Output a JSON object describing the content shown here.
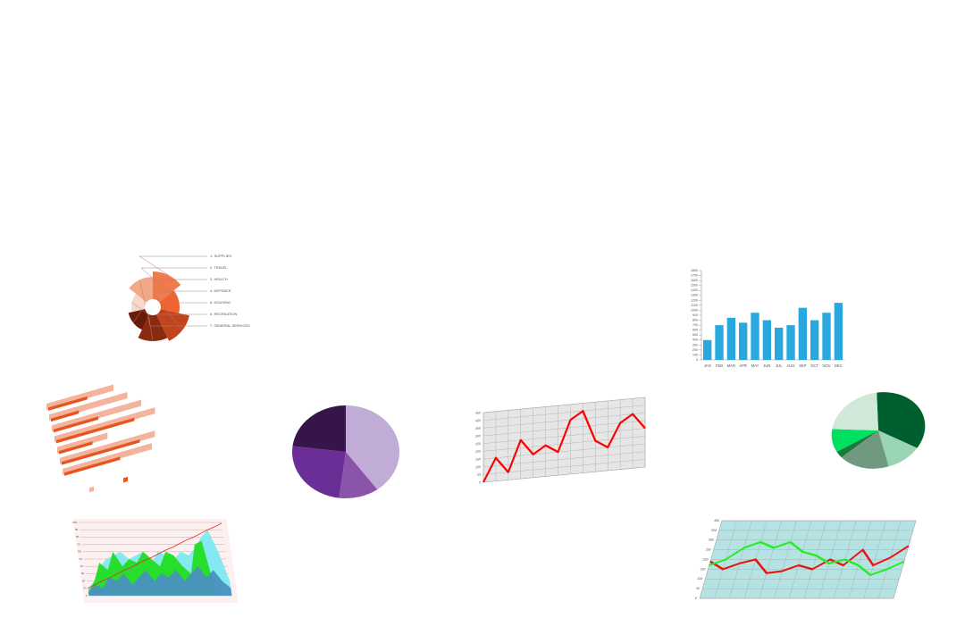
{
  "chart_data": [
    {
      "type": "bar",
      "categories": [
        "JAN",
        "FEB",
        "MAR",
        "APR",
        "MAY",
        "JUN",
        "JUL",
        "AUG",
        "SEP",
        "OCT",
        "NOV",
        "DEC"
      ],
      "values": [
        400,
        700,
        850,
        750,
        950,
        800,
        650,
        700,
        1050,
        800,
        950,
        1150
      ],
      "color": "#29a8e0",
      "ylim": [
        0,
        1800
      ],
      "yticks": [
        0,
        100,
        200,
        300,
        400,
        500,
        600,
        700,
        800,
        900,
        1000,
        1100,
        1200,
        1300,
        1400,
        1500,
        1600,
        1700,
        1800
      ]
    },
    {
      "type": "pie",
      "values": [
        40,
        12,
        25,
        23
      ],
      "colors": [
        "#c0acd6",
        "#8a55a8",
        "#6a2e96",
        "#35154a"
      ]
    },
    {
      "type": "pie",
      "values": [
        35,
        12,
        18,
        3,
        10,
        22
      ],
      "colors": [
        "#005f2e",
        "#99d4b5",
        "#6f9a80",
        "#1a7a3a",
        "#00e060",
        "#cfe8d8"
      ]
    },
    {
      "type": "line",
      "series": [
        {
          "color": "#ff0000",
          "values": [
            0,
            150,
            50,
            250,
            150,
            200,
            150,
            350,
            400,
            200,
            150,
            300,
            350,
            250
          ]
        }
      ],
      "ylim": [
        0,
        450
      ],
      "yticks": [
        0,
        50,
        100,
        150,
        200,
        250,
        300,
        350,
        400,
        450
      ],
      "grid": true,
      "panel": "#e6e6e6"
    },
    {
      "type": "line",
      "series": [
        {
          "color": "#ee1111",
          "values": [
            190,
            150,
            180,
            200,
            130,
            140,
            170,
            150,
            200,
            170,
            250,
            170,
            210,
            270
          ]
        },
        {
          "color": "#22ee22",
          "values": [
            170,
            200,
            260,
            290,
            260,
            290,
            240,
            220,
            180,
            200,
            170,
            120,
            150,
            190
          ]
        }
      ],
      "ylim": [
        0,
        400
      ],
      "yticks": [
        0,
        50,
        100,
        150,
        200,
        250,
        300,
        350,
        400
      ],
      "grid": true,
      "panel": "#b5e3e3"
    },
    {
      "type": "area",
      "series": [
        {
          "color": "#7ee8f0",
          "fill": true,
          "values": [
            10,
            20,
            40,
            50,
            55,
            60,
            50,
            55,
            60,
            45,
            60,
            55,
            50,
            60,
            55,
            65,
            80,
            90,
            60,
            20
          ]
        },
        {
          "color": "#22dd22",
          "fill": true,
          "values": [
            5,
            20,
            45,
            35,
            60,
            40,
            50,
            45,
            60,
            50,
            40,
            60,
            55,
            40,
            30,
            70,
            75,
            0,
            0,
            0
          ]
        },
        {
          "color": "#4a90c0",
          "fill": true,
          "values": [
            5,
            15,
            10,
            25,
            20,
            30,
            15,
            25,
            35,
            20,
            30,
            25,
            35,
            20,
            30,
            40,
            25,
            35,
            20,
            10
          ]
        },
        {
          "color": "#dd3322",
          "fill": false,
          "values": [
            10,
            15,
            20,
            24,
            29,
            34,
            38,
            43,
            48,
            52,
            57,
            62,
            66,
            71,
            76,
            80,
            85,
            90,
            94,
            99
          ]
        }
      ],
      "ylim": [
        0,
        100
      ],
      "yticks": [
        0,
        10,
        20,
        30,
        40,
        50,
        60,
        70,
        80,
        90,
        100
      ],
      "grid": true,
      "panel": "#fdf0f0"
    },
    {
      "type": "rose",
      "categories": [
        "1. SUPPLIES",
        "2. TRAVEL",
        "3. HEALTH",
        "4. DEFENCE",
        "5. HOUSING",
        "6. RECREATION",
        "7. GENERAL SERVICES"
      ],
      "values": [
        40,
        30,
        42,
        38,
        28,
        24,
        34
      ],
      "colors": [
        "#f07a4a",
        "#f0622e",
        "#c0441c",
        "#8a2a10",
        "#6a1a08",
        "#f8d8cc",
        "#f0a888"
      ]
    },
    {
      "type": "hbar",
      "series": [
        {
          "color": "#f4b39c",
          "values": [
            60,
            70,
            80,
            90,
            45,
            85,
            80
          ]
        },
        {
          "color": "#e8541e",
          "values": [
            35,
            25,
            40,
            70,
            30,
            70,
            50
          ]
        }
      ],
      "xlim": [
        0,
        100
      ]
    }
  ]
}
